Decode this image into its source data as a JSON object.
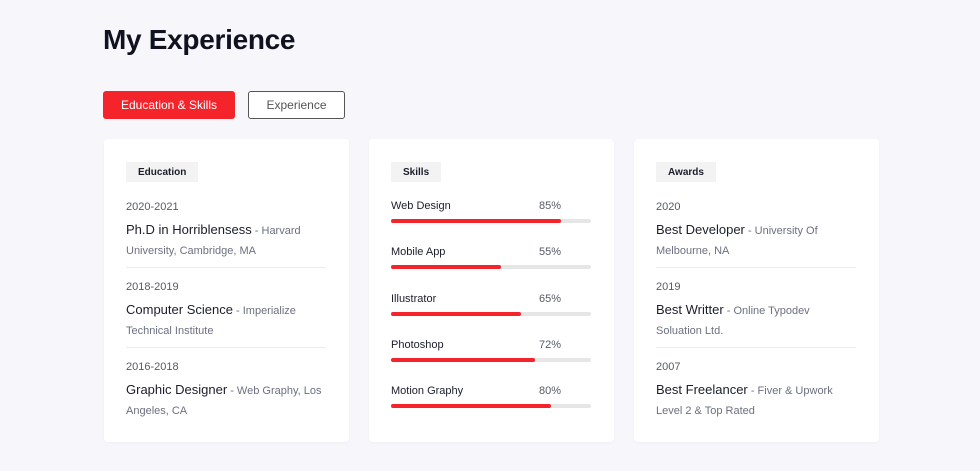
{
  "title": "My Experience",
  "tabs": [
    {
      "label": "Education & Skills",
      "active": true
    },
    {
      "label": "Experience",
      "active": false
    }
  ],
  "accent": "#f5232a",
  "education": {
    "heading": "Education",
    "items": [
      {
        "year": "2020-2021",
        "title": "Ph.D in Horriblensess",
        "detail": " - Harvard University, Cambridge, MA"
      },
      {
        "year": "2018-2019",
        "title": "Computer Science",
        "detail": " - Imperialize Technical Institute"
      },
      {
        "year": "2016-2018",
        "title": "Graphic Designer",
        "detail": " - Web Graphy, Los Angeles, CA"
      }
    ]
  },
  "skills": {
    "heading": "Skills",
    "items": [
      {
        "name": "Web Design",
        "percent_label": "85%",
        "value": 85
      },
      {
        "name": "Mobile App",
        "percent_label": "55%",
        "value": 55
      },
      {
        "name": "Illustrator",
        "percent_label": "65%",
        "value": 65
      },
      {
        "name": "Photoshop",
        "percent_label": "72%",
        "value": 72
      },
      {
        "name": "Motion Graphy",
        "percent_label": "80%",
        "value": 80
      }
    ]
  },
  "awards": {
    "heading": "Awards",
    "items": [
      {
        "year": "2020",
        "title": "Best Developer",
        "detail": " - University Of Melbourne, NA"
      },
      {
        "year": "2019",
        "title": "Best Writter",
        "detail": " - Online Typodev Soluation Ltd."
      },
      {
        "year": "2007",
        "title": "Best Freelancer",
        "detail": " - Fiver & Upwork Level 2 & Top Rated"
      }
    ]
  }
}
